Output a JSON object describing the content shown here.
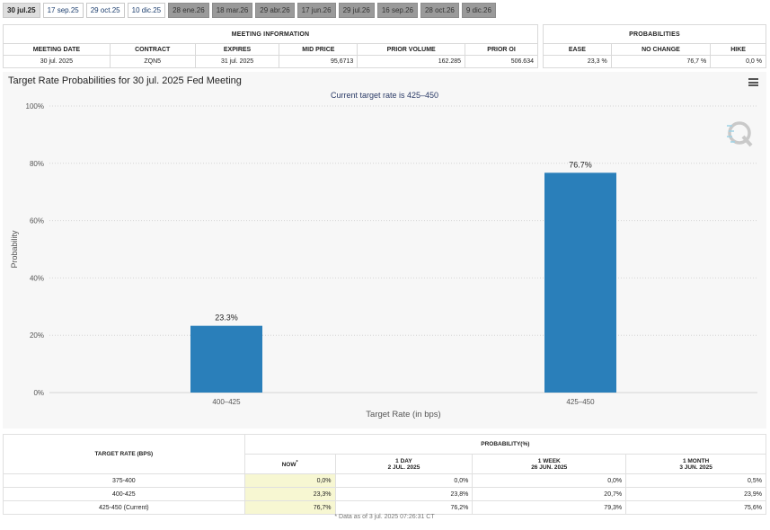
{
  "tabs": [
    {
      "label": "30 jul.25",
      "state": "active"
    },
    {
      "label": "17 sep.25",
      "state": "normal"
    },
    {
      "label": "29 oct.25",
      "state": "normal"
    },
    {
      "label": "10 dic.25",
      "state": "normal"
    },
    {
      "label": "28 ene.26",
      "state": "future"
    },
    {
      "label": "18 mar.26",
      "state": "future"
    },
    {
      "label": "29 abr.26",
      "state": "future"
    },
    {
      "label": "17 jun.26",
      "state": "future"
    },
    {
      "label": "29 jul.26",
      "state": "future"
    },
    {
      "label": "16 sep.26",
      "state": "future"
    },
    {
      "label": "28 oct.26",
      "state": "future"
    },
    {
      "label": "9 dic.26",
      "state": "future"
    }
  ],
  "meeting_info": {
    "section_title": "MEETING INFORMATION",
    "headers": [
      "MEETING DATE",
      "CONTRACT",
      "EXPIRES",
      "MID PRICE",
      "PRIOR VOLUME",
      "PRIOR OI"
    ],
    "values": [
      "30 jul. 2025",
      "ZQN5",
      "31 jul. 2025",
      "95,6713",
      "162.285",
      "506.634"
    ]
  },
  "probabilities": {
    "section_title": "PROBABILITIES",
    "headers": [
      "EASE",
      "NO CHANGE",
      "HIKE"
    ],
    "values": [
      "23,3 %",
      "76,7 %",
      "0,0 %"
    ]
  },
  "chart_header": {
    "title": "Target Rate Probabilities for 30 jul. 2025 Fed Meeting",
    "subtitle": "Current target rate is 425–450",
    "menu_icon": "hamburger-menu-icon",
    "watermark_icon": "q-logo-icon"
  },
  "chart_data": {
    "type": "bar",
    "title": "Target Rate Probabilities for 30 jul. 2025 Fed Meeting",
    "subtitle": "Current target rate is 425–450",
    "categories": [
      "400–425",
      "425–450"
    ],
    "values": [
      23.3,
      76.7
    ],
    "data_labels": [
      "23.3%",
      "76.7%"
    ],
    "xlabel": "Target Rate (in bps)",
    "ylabel": "Probability",
    "ylim": [
      0,
      100
    ],
    "yticks": [
      0,
      20,
      40,
      60,
      80,
      100
    ],
    "ytick_labels": [
      "0%",
      "20%",
      "40%",
      "60%",
      "80%",
      "100%"
    ],
    "bar_color": "#2a7fba",
    "grid": true
  },
  "prob_table": {
    "target_rate_header": "TARGET RATE (BPS)",
    "probability_header": "PROBABILITY(%)",
    "columns": [
      {
        "line1": "NOW",
        "marker": "*",
        "line2": ""
      },
      {
        "line1": "1 DAY",
        "line2": "2 JUL. 2025"
      },
      {
        "line1": "1 WEEK",
        "line2": "26 JUN. 2025"
      },
      {
        "line1": "1 MONTH",
        "line2": "3 JUN. 2025"
      }
    ],
    "rows": [
      {
        "rate": "375-400",
        "values": [
          "0,0%",
          "0,0%",
          "0,0%",
          "0,5%"
        ]
      },
      {
        "rate": "400-425",
        "values": [
          "23,3%",
          "23,8%",
          "20,7%",
          "23,9%"
        ]
      },
      {
        "rate": "425-450 (Current)",
        "values": [
          "76,7%",
          "76,2%",
          "79,3%",
          "75,6%"
        ]
      }
    ],
    "footnote": "* Data as of 3 jul. 2025 07:26:31 CT"
  }
}
